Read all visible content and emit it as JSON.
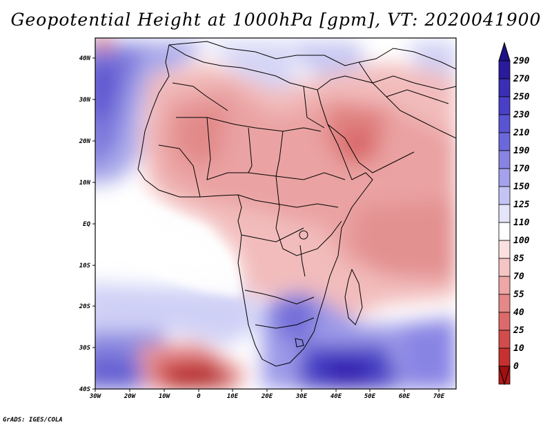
{
  "title": "Geopotential Height at 1000hPa [gpm], VT: 2020041900",
  "credit": "GrADS: IGES/COLA",
  "map": {
    "lon_labels": [
      "30W",
      "20W",
      "10W",
      "0",
      "10E",
      "20E",
      "30E",
      "40E",
      "50E",
      "60E",
      "70E"
    ],
    "lat_labels": [
      "40N",
      "30N",
      "20N",
      "10N",
      "EQ",
      "10S",
      "20S",
      "30S",
      "40S"
    ]
  },
  "colorbar": {
    "labels": [
      "290",
      "270",
      "250",
      "230",
      "210",
      "190",
      "170",
      "150",
      "125",
      "110",
      "100",
      "85",
      "70",
      "55",
      "40",
      "25",
      "10",
      "0"
    ],
    "colors": [
      "#2a1a9c",
      "#3a2eb4",
      "#4a40c8",
      "#5a54d4",
      "#6c68dc",
      "#8884e4",
      "#a4a2ec",
      "#c4c4f4",
      "#e4e4fa",
      "#ffffff",
      "#fbe0e0",
      "#f5c4c4",
      "#eea6a6",
      "#e58888",
      "#dd6a6a",
      "#d24c4c",
      "#c63030",
      "#b01818"
    ]
  }
}
